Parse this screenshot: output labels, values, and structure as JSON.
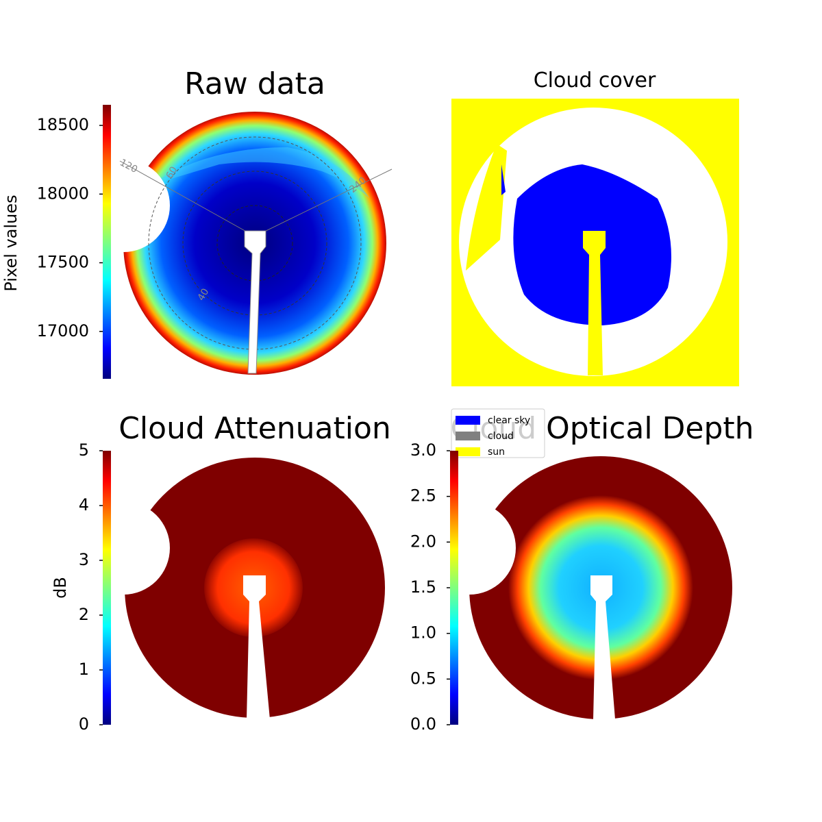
{
  "chart_data": [
    {
      "type": "image",
      "title": "Raw data",
      "ylabel": "Pixel values",
      "colormap": "jet",
      "ylim": [
        16655,
        18650
      ],
      "yticks": [
        17000,
        17500,
        18000,
        18500
      ],
      "annotations": [
        "120",
        "60",
        "240",
        "40"
      ]
    },
    {
      "type": "image",
      "title": "Cloud cover",
      "categories": [
        "clear sky",
        "cloud",
        "sun"
      ],
      "colors": [
        "#0000ff",
        "#808080",
        "#ffff00"
      ]
    },
    {
      "type": "image",
      "title": "Cloud Attenuation",
      "ylabel": "dB",
      "colormap": "jet",
      "ylim": [
        0,
        5
      ],
      "yticks": [
        0,
        1,
        2,
        3,
        4,
        5
      ]
    },
    {
      "type": "image",
      "title": "Cloud Optical Depth",
      "colormap": "jet",
      "ylim": [
        0,
        3
      ],
      "yticks": [
        {
          "value": 0,
          "label": "0.0"
        },
        0.5,
        {
          "value": 1,
          "label": "1.0"
        },
        1.5,
        {
          "value": 2,
          "label": "2.0"
        },
        2.5,
        {
          "value": 3,
          "label": "3.0"
        }
      ]
    }
  ]
}
